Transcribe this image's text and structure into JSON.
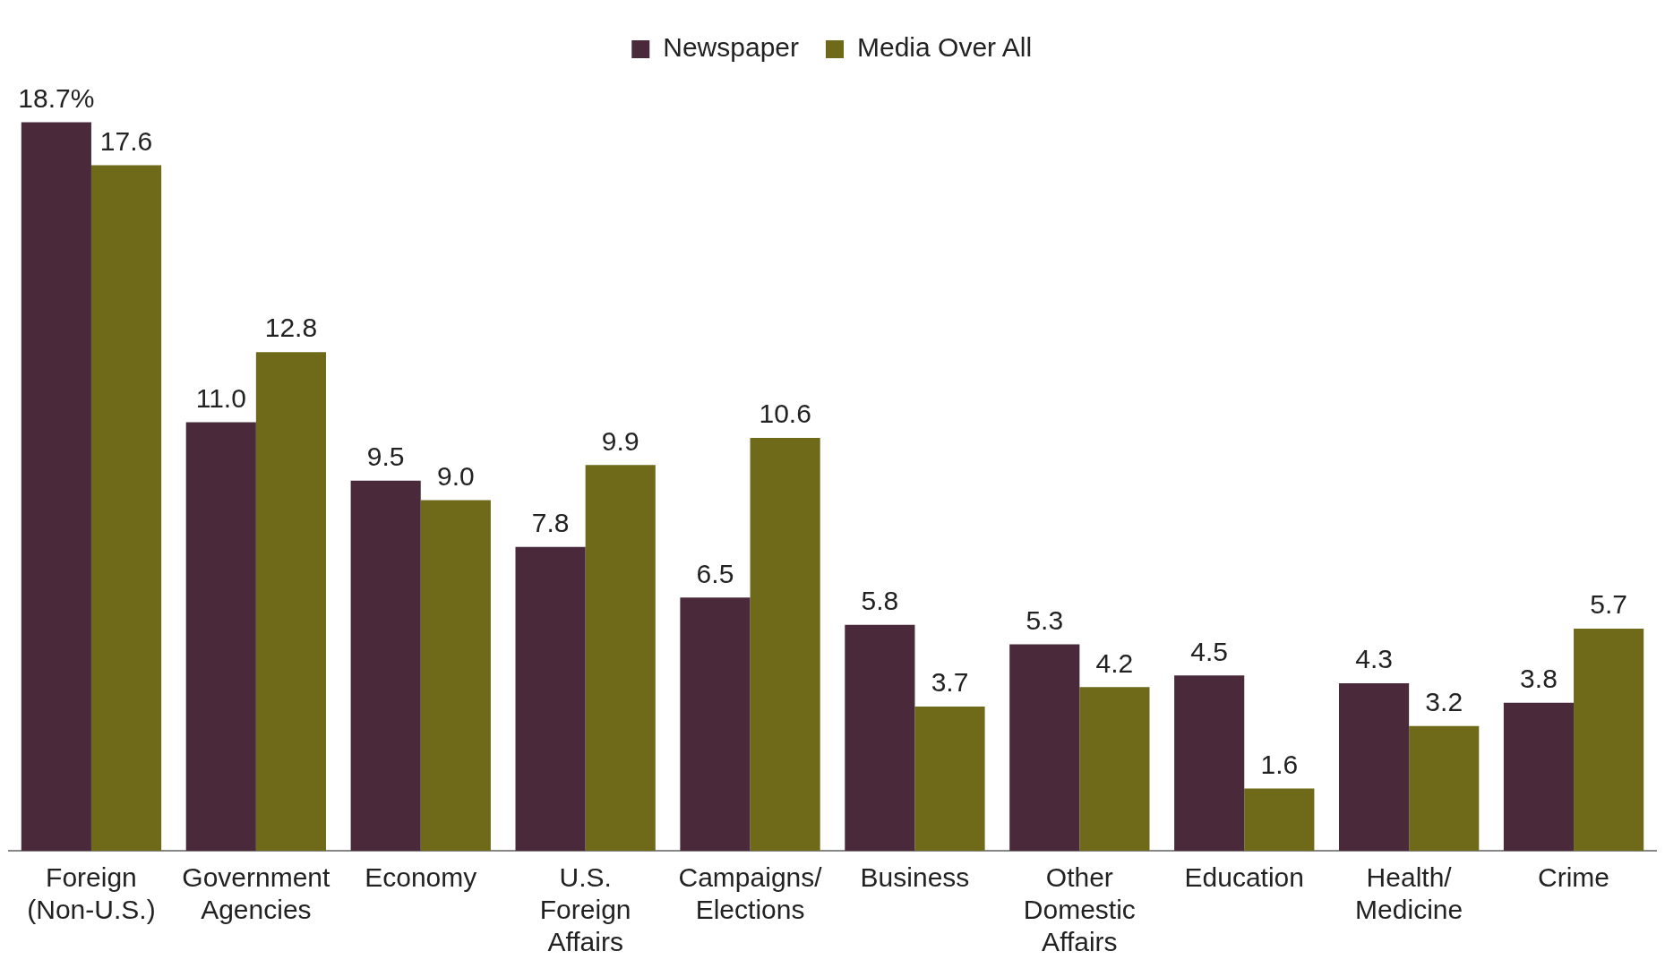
{
  "chart_data": {
    "type": "bar",
    "categories": [
      "Foreign (Non-U.S.)",
      "Government Agencies",
      "Economy",
      "U.S. Foreign Affairs",
      "Campaigns/ Elections",
      "Business",
      "Other Domestic Affairs",
      "Education",
      "Health/ Medicine",
      "Crime"
    ],
    "series": [
      {
        "name": "Newspaper",
        "color": "#4a2a3a",
        "values": [
          18.7,
          11.0,
          9.5,
          7.8,
          6.5,
          5.8,
          5.3,
          4.5,
          4.3,
          3.8
        ],
        "value_labels": [
          "18.7%",
          "11.0",
          "9.5",
          "7.8",
          "6.5",
          "5.8",
          "5.3",
          "4.5",
          "4.3",
          "3.8"
        ]
      },
      {
        "name": "Media Over All",
        "color": "#6e6a1a",
        "values": [
          17.6,
          12.8,
          9.0,
          9.9,
          10.6,
          3.7,
          4.2,
          1.6,
          3.2,
          5.7
        ],
        "value_labels": [
          "17.6",
          "12.8",
          "9.0",
          "9.9",
          "10.6",
          "3.7",
          "4.2",
          "1.6",
          "3.2",
          "5.7"
        ]
      }
    ],
    "legend": "top",
    "grid": false
  }
}
